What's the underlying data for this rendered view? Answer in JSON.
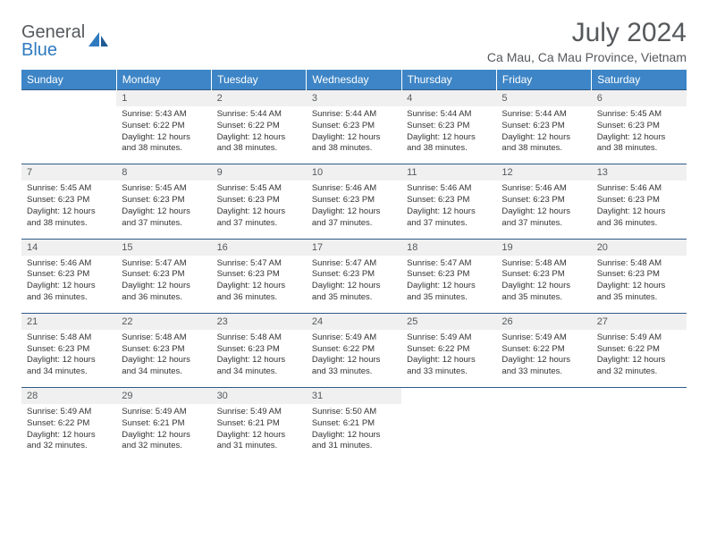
{
  "logo": {
    "word1": "General",
    "word2": "Blue"
  },
  "title": "July 2024",
  "location": "Ca Mau, Ca Mau Province, Vietnam",
  "colors": {
    "header_bg": "#3d85c6",
    "header_text": "#ffffff",
    "daynum_bg": "#f0f0f0",
    "rule": "#2f5a87",
    "text_muted": "#55595c",
    "logo_accent": "#2f7abf"
  },
  "days": [
    "Sunday",
    "Monday",
    "Tuesday",
    "Wednesday",
    "Thursday",
    "Friday",
    "Saturday"
  ],
  "weeks": [
    [
      {
        "n": "",
        "l": []
      },
      {
        "n": "1",
        "l": [
          "Sunrise: 5:43 AM",
          "Sunset: 6:22 PM",
          "Daylight: 12 hours",
          "and 38 minutes."
        ]
      },
      {
        "n": "2",
        "l": [
          "Sunrise: 5:44 AM",
          "Sunset: 6:22 PM",
          "Daylight: 12 hours",
          "and 38 minutes."
        ]
      },
      {
        "n": "3",
        "l": [
          "Sunrise: 5:44 AM",
          "Sunset: 6:23 PM",
          "Daylight: 12 hours",
          "and 38 minutes."
        ]
      },
      {
        "n": "4",
        "l": [
          "Sunrise: 5:44 AM",
          "Sunset: 6:23 PM",
          "Daylight: 12 hours",
          "and 38 minutes."
        ]
      },
      {
        "n": "5",
        "l": [
          "Sunrise: 5:44 AM",
          "Sunset: 6:23 PM",
          "Daylight: 12 hours",
          "and 38 minutes."
        ]
      },
      {
        "n": "6",
        "l": [
          "Sunrise: 5:45 AM",
          "Sunset: 6:23 PM",
          "Daylight: 12 hours",
          "and 38 minutes."
        ]
      }
    ],
    [
      {
        "n": "7",
        "l": [
          "Sunrise: 5:45 AM",
          "Sunset: 6:23 PM",
          "Daylight: 12 hours",
          "and 38 minutes."
        ]
      },
      {
        "n": "8",
        "l": [
          "Sunrise: 5:45 AM",
          "Sunset: 6:23 PM",
          "Daylight: 12 hours",
          "and 37 minutes."
        ]
      },
      {
        "n": "9",
        "l": [
          "Sunrise: 5:45 AM",
          "Sunset: 6:23 PM",
          "Daylight: 12 hours",
          "and 37 minutes."
        ]
      },
      {
        "n": "10",
        "l": [
          "Sunrise: 5:46 AM",
          "Sunset: 6:23 PM",
          "Daylight: 12 hours",
          "and 37 minutes."
        ]
      },
      {
        "n": "11",
        "l": [
          "Sunrise: 5:46 AM",
          "Sunset: 6:23 PM",
          "Daylight: 12 hours",
          "and 37 minutes."
        ]
      },
      {
        "n": "12",
        "l": [
          "Sunrise: 5:46 AM",
          "Sunset: 6:23 PM",
          "Daylight: 12 hours",
          "and 37 minutes."
        ]
      },
      {
        "n": "13",
        "l": [
          "Sunrise: 5:46 AM",
          "Sunset: 6:23 PM",
          "Daylight: 12 hours",
          "and 36 minutes."
        ]
      }
    ],
    [
      {
        "n": "14",
        "l": [
          "Sunrise: 5:46 AM",
          "Sunset: 6:23 PM",
          "Daylight: 12 hours",
          "and 36 minutes."
        ]
      },
      {
        "n": "15",
        "l": [
          "Sunrise: 5:47 AM",
          "Sunset: 6:23 PM",
          "Daylight: 12 hours",
          "and 36 minutes."
        ]
      },
      {
        "n": "16",
        "l": [
          "Sunrise: 5:47 AM",
          "Sunset: 6:23 PM",
          "Daylight: 12 hours",
          "and 36 minutes."
        ]
      },
      {
        "n": "17",
        "l": [
          "Sunrise: 5:47 AM",
          "Sunset: 6:23 PM",
          "Daylight: 12 hours",
          "and 35 minutes."
        ]
      },
      {
        "n": "18",
        "l": [
          "Sunrise: 5:47 AM",
          "Sunset: 6:23 PM",
          "Daylight: 12 hours",
          "and 35 minutes."
        ]
      },
      {
        "n": "19",
        "l": [
          "Sunrise: 5:48 AM",
          "Sunset: 6:23 PM",
          "Daylight: 12 hours",
          "and 35 minutes."
        ]
      },
      {
        "n": "20",
        "l": [
          "Sunrise: 5:48 AM",
          "Sunset: 6:23 PM",
          "Daylight: 12 hours",
          "and 35 minutes."
        ]
      }
    ],
    [
      {
        "n": "21",
        "l": [
          "Sunrise: 5:48 AM",
          "Sunset: 6:23 PM",
          "Daylight: 12 hours",
          "and 34 minutes."
        ]
      },
      {
        "n": "22",
        "l": [
          "Sunrise: 5:48 AM",
          "Sunset: 6:23 PM",
          "Daylight: 12 hours",
          "and 34 minutes."
        ]
      },
      {
        "n": "23",
        "l": [
          "Sunrise: 5:48 AM",
          "Sunset: 6:23 PM",
          "Daylight: 12 hours",
          "and 34 minutes."
        ]
      },
      {
        "n": "24",
        "l": [
          "Sunrise: 5:49 AM",
          "Sunset: 6:22 PM",
          "Daylight: 12 hours",
          "and 33 minutes."
        ]
      },
      {
        "n": "25",
        "l": [
          "Sunrise: 5:49 AM",
          "Sunset: 6:22 PM",
          "Daylight: 12 hours",
          "and 33 minutes."
        ]
      },
      {
        "n": "26",
        "l": [
          "Sunrise: 5:49 AM",
          "Sunset: 6:22 PM",
          "Daylight: 12 hours",
          "and 33 minutes."
        ]
      },
      {
        "n": "27",
        "l": [
          "Sunrise: 5:49 AM",
          "Sunset: 6:22 PM",
          "Daylight: 12 hours",
          "and 32 minutes."
        ]
      }
    ],
    [
      {
        "n": "28",
        "l": [
          "Sunrise: 5:49 AM",
          "Sunset: 6:22 PM",
          "Daylight: 12 hours",
          "and 32 minutes."
        ]
      },
      {
        "n": "29",
        "l": [
          "Sunrise: 5:49 AM",
          "Sunset: 6:21 PM",
          "Daylight: 12 hours",
          "and 32 minutes."
        ]
      },
      {
        "n": "30",
        "l": [
          "Sunrise: 5:49 AM",
          "Sunset: 6:21 PM",
          "Daylight: 12 hours",
          "and 31 minutes."
        ]
      },
      {
        "n": "31",
        "l": [
          "Sunrise: 5:50 AM",
          "Sunset: 6:21 PM",
          "Daylight: 12 hours",
          "and 31 minutes."
        ]
      },
      {
        "n": "",
        "l": []
      },
      {
        "n": "",
        "l": []
      },
      {
        "n": "",
        "l": []
      }
    ]
  ]
}
